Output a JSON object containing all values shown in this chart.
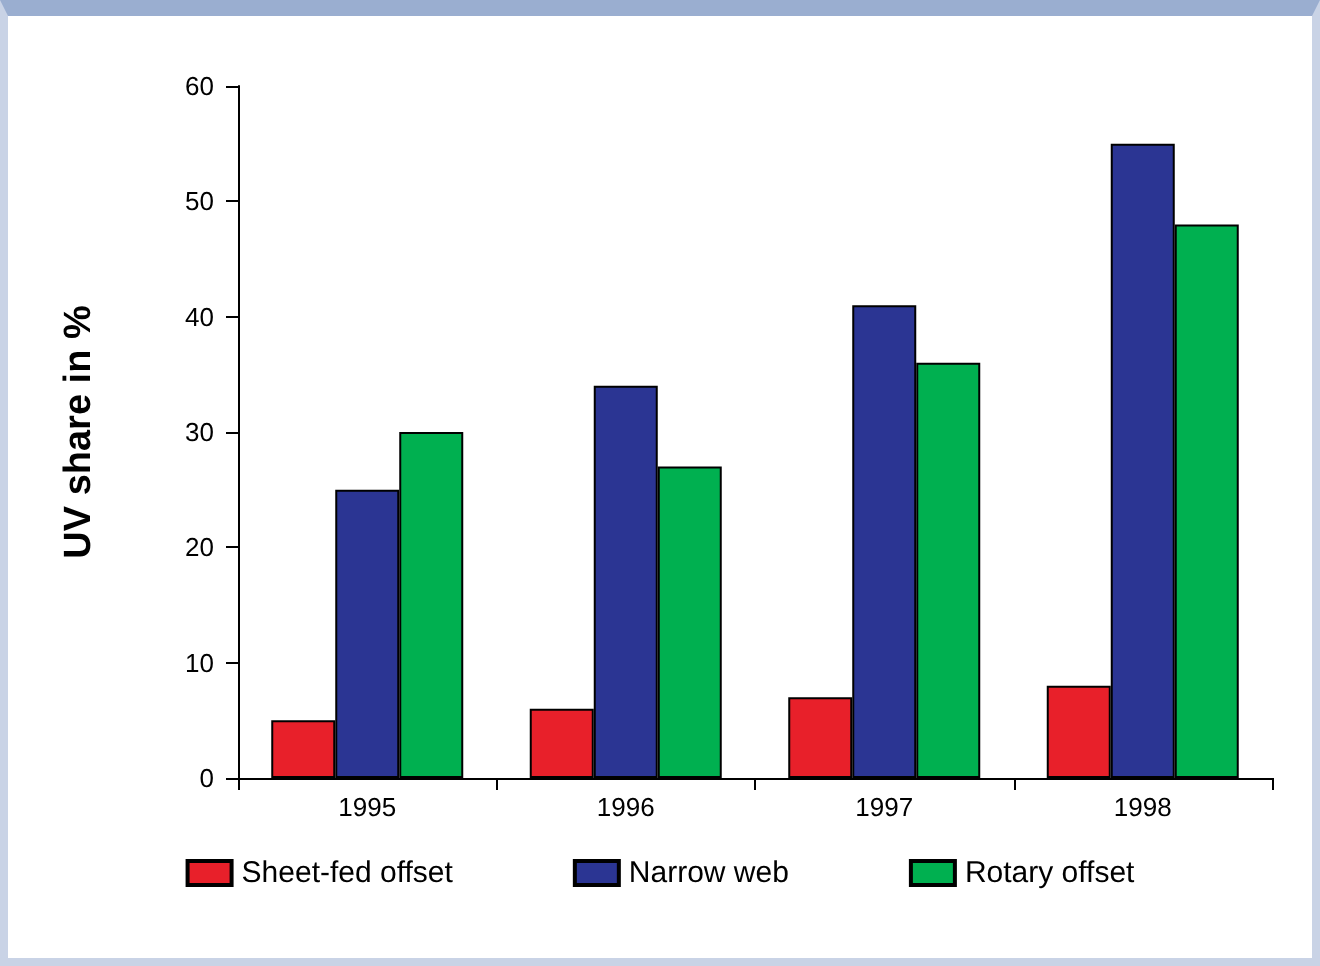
{
  "chart_data": {
    "type": "bar",
    "ylabel": "UV share in %",
    "categories": [
      "1995",
      "1996",
      "1997",
      "1998"
    ],
    "series": [
      {
        "name": "Sheet-fed offset",
        "color": "#e8202a",
        "values": [
          5,
          6,
          7,
          8
        ]
      },
      {
        "name": "Narrow web",
        "color": "#2b3593",
        "values": [
          25,
          34,
          41,
          55
        ]
      },
      {
        "name": "Rotary offset",
        "color": "#00b050",
        "values": [
          30,
          27,
          36,
          48
        ]
      }
    ],
    "ylim": [
      0,
      60
    ],
    "yticks": [
      0,
      10,
      20,
      30,
      40,
      50,
      60
    ],
    "grid": false,
    "legend": "bottom"
  }
}
